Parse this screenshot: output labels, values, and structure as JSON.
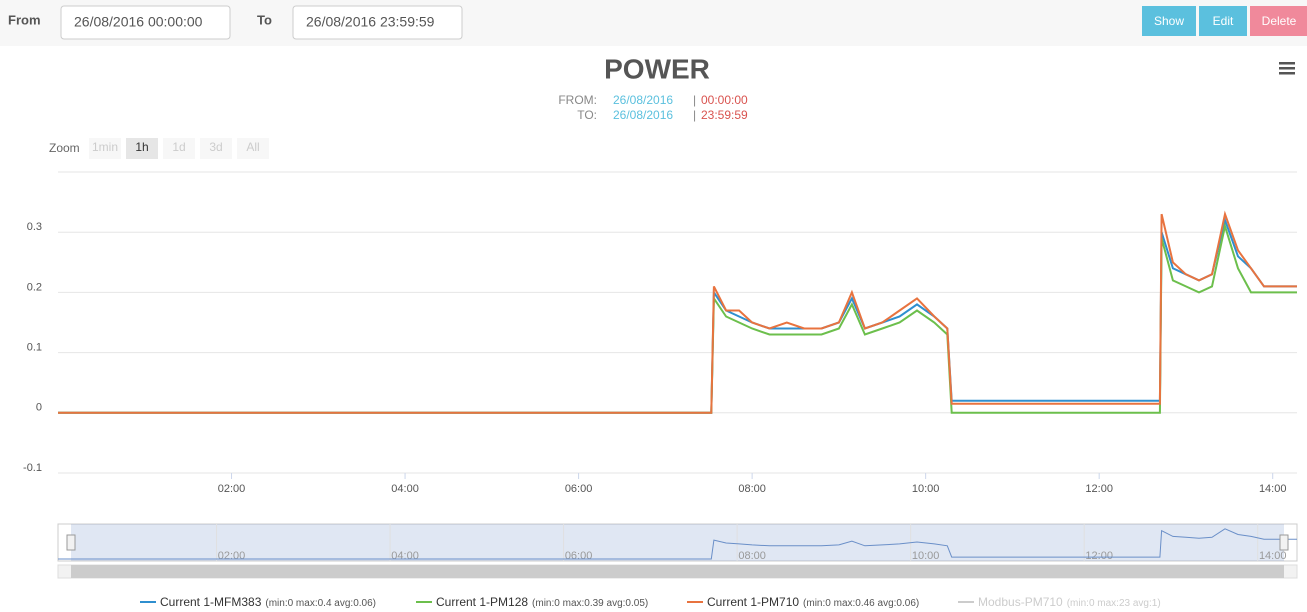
{
  "form": {
    "from_label": "From",
    "from_value": "26/08/2016 00:00:00",
    "to_label": "To",
    "to_value": "26/08/2016 23:59:59",
    "buttons": [
      {
        "label": "Show",
        "color": "#5bc0de"
      },
      {
        "label": "Edit",
        "color": "#5bc0de"
      },
      {
        "label": "Delete",
        "color": "#f0899b"
      }
    ]
  },
  "chart_data": {
    "type": "line",
    "title": "POWER",
    "subtitle": [
      {
        "label": "FROM:",
        "date": "26/08/2016",
        "sep": "|",
        "time": "00:00:00"
      },
      {
        "label": "TO:",
        "date": "26/08/2016",
        "sep": "|",
        "time": "23:59:59"
      }
    ],
    "zoom_label": "Zoom",
    "zoom_buttons": [
      "1min",
      "1h",
      "1d",
      "3d",
      "All"
    ],
    "grid": true,
    "x": [
      0,
      7.53,
      7.56,
      7.7,
      7.85,
      8.0,
      8.2,
      8.4,
      8.6,
      8.8,
      9.0,
      9.15,
      9.3,
      9.5,
      9.7,
      9.9,
      10.1,
      10.25,
      10.3,
      12.7,
      12.72,
      12.85,
      13.0,
      13.15,
      13.3,
      13.45,
      13.6,
      13.75,
      13.9,
      14.28
    ],
    "xlim": [
      0,
      14.28
    ],
    "xticks": [
      {
        "value": 2,
        "label": "02:00"
      },
      {
        "value": 4,
        "label": "04:00"
      },
      {
        "value": 6,
        "label": "06:00"
      },
      {
        "value": 8,
        "label": "08:00"
      },
      {
        "value": 10,
        "label": "10:00"
      },
      {
        "value": 12,
        "label": "12:00"
      },
      {
        "value": 14,
        "label": "14:00"
      }
    ],
    "ylim": [
      -0.1,
      0.4
    ],
    "yticks": [
      -0.1,
      0,
      0.1,
      0.2,
      0.3
    ],
    "series": [
      {
        "name": "Current 1-MFM383",
        "stats": "(min:0 max:0.4 avg:0.06)",
        "color": "#2f8fcf",
        "visible": true,
        "values": [
          0,
          0,
          0.2,
          0.17,
          0.16,
          0.15,
          0.14,
          0.14,
          0.14,
          0.14,
          0.15,
          0.19,
          0.14,
          0.15,
          0.16,
          0.18,
          0.16,
          0.14,
          0.02,
          0.02,
          0.3,
          0.24,
          0.23,
          0.22,
          0.23,
          0.32,
          0.26,
          0.24,
          0.21,
          0.21
        ]
      },
      {
        "name": "Current 1-PM128",
        "stats": "(min:0 max:0.39 avg:0.05)",
        "color": "#6cbf4c",
        "visible": true,
        "values": [
          0,
          0,
          0.19,
          0.16,
          0.15,
          0.14,
          0.13,
          0.13,
          0.13,
          0.13,
          0.14,
          0.18,
          0.13,
          0.14,
          0.15,
          0.17,
          0.15,
          0.13,
          0,
          0,
          0.29,
          0.22,
          0.21,
          0.2,
          0.21,
          0.31,
          0.24,
          0.2,
          0.2,
          0.2
        ]
      },
      {
        "name": "Current 1-PM710",
        "stats": "(min:0 max:0.46 avg:0.06)",
        "color": "#e8733f",
        "visible": true,
        "values": [
          0,
          0,
          0.21,
          0.17,
          0.17,
          0.15,
          0.14,
          0.15,
          0.14,
          0.14,
          0.15,
          0.2,
          0.14,
          0.15,
          0.17,
          0.19,
          0.16,
          0.14,
          0.015,
          0.015,
          0.33,
          0.25,
          0.23,
          0.22,
          0.23,
          0.33,
          0.27,
          0.24,
          0.21,
          0.21
        ]
      },
      {
        "name": "Modbus-PM710",
        "stats": "(min:0 max:23 avg:1)",
        "color": "#cccccc",
        "visible": false
      }
    ]
  }
}
